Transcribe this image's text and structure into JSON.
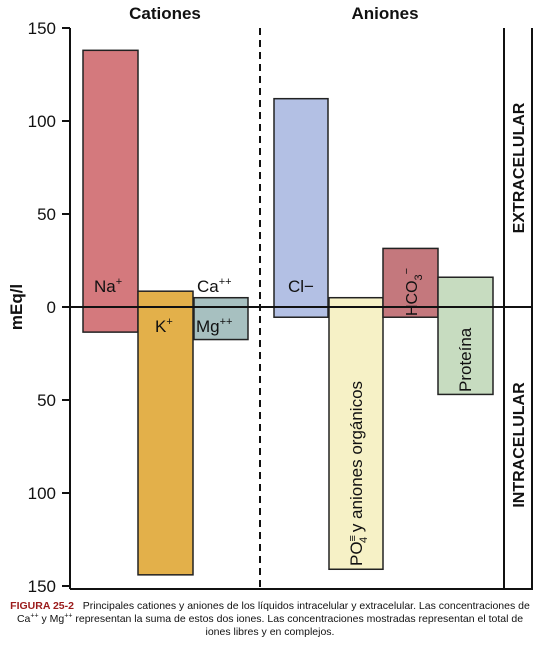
{
  "chart_data": {
    "type": "bar",
    "ylabel": "mEq/l",
    "yticks": [
      "150",
      "100",
      "50",
      "0",
      "50",
      "100",
      "150"
    ],
    "ylim": [
      -150,
      150
    ],
    "sections": [
      {
        "label": "Cationes",
        "side": "left"
      },
      {
        "label": "Aniones",
        "side": "right"
      }
    ],
    "compartments": {
      "top": "EXTRACELULAR",
      "bottom": "INTRACELULAR"
    },
    "bars": [
      {
        "label": "Na+",
        "from": -13.5,
        "to": 138,
        "color": "#d4797d",
        "section": "Cationes"
      },
      {
        "label": "K+",
        "from": -144,
        "to": 8.5,
        "color": "#e3b04a",
        "section": "Cationes"
      },
      {
        "label": "Ca++",
        "from": -17.5,
        "to": 5,
        "color": "#a7c0c0",
        "section": "Cationes"
      },
      {
        "label": "Cl−",
        "from": -5.5,
        "to": 112,
        "color": "#b3c0e4",
        "section": "Aniones"
      },
      {
        "label": "PO4≡ y aniones orgánicos",
        "from": -141,
        "to": 5,
        "color": "#f6f1c6",
        "section": "Aniones"
      },
      {
        "label": "HCO3−",
        "from": -5.5,
        "to": 31.5,
        "color": "#c4787d",
        "section": "Aniones"
      },
      {
        "label": "Proteína",
        "from": -47,
        "to": 16,
        "color": "#c7dcc0",
        "section": "Aniones"
      }
    ],
    "extra_labels": [
      {
        "label": "Mg++"
      }
    ]
  },
  "caption": {
    "figure": "FIGURA 25-2",
    "text": "Principales cationes y aniones de los líquidos intracelular y extracelular. Las concentraciones de Ca++ y Mg++ representan la suma de estos dos iones. Las concentraciones mostradas representan el total de iones libres y en complejos."
  }
}
